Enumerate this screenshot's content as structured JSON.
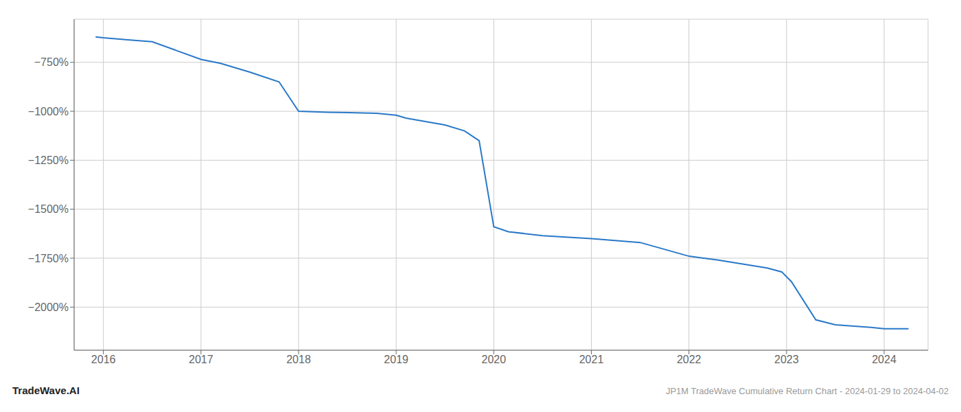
{
  "chart_data": {
    "type": "line",
    "x": [
      2015.92,
      2016.0,
      2016.25,
      2016.5,
      2017.0,
      2017.2,
      2017.5,
      2017.8,
      2018.0,
      2018.3,
      2018.8,
      2019.0,
      2019.1,
      2019.5,
      2019.7,
      2019.85,
      2020.0,
      2020.15,
      2020.5,
      2021.0,
      2021.5,
      2022.0,
      2022.3,
      2022.8,
      2022.95,
      2023.05,
      2023.3,
      2023.5,
      2023.9,
      2024.0,
      2024.25
    ],
    "values": [
      -620,
      -625,
      -635,
      -645,
      -735,
      -755,
      -800,
      -850,
      -1000,
      -1005,
      -1010,
      -1020,
      -1035,
      -1070,
      -1100,
      -1150,
      -1590,
      -1615,
      -1635,
      -1650,
      -1670,
      -1740,
      -1760,
      -1800,
      -1820,
      -1870,
      -2065,
      -2090,
      -2105,
      -2110,
      -2110
    ],
    "color": "#2878c8",
    "xlim": [
      2015.7,
      2024.45
    ],
    "ylim": [
      -2220,
      -530
    ],
    "xticks": [
      2016,
      2017,
      2018,
      2019,
      2020,
      2021,
      2022,
      2023,
      2024
    ],
    "yticks": [
      {
        "value": -750,
        "label": "−750%"
      },
      {
        "value": -1000,
        "label": "−1000%"
      },
      {
        "value": -1250,
        "label": "−1250%"
      },
      {
        "value": -1500,
        "label": "−1500%"
      },
      {
        "value": -1750,
        "label": "−1750%"
      },
      {
        "value": -2000,
        "label": "−2000%"
      }
    ],
    "grid": true,
    "annotations": [
      "TradeWave.AI",
      "JP1M TradeWave Cumulative Return Chart - 2024-01-29 to 2024-04-02"
    ]
  }
}
